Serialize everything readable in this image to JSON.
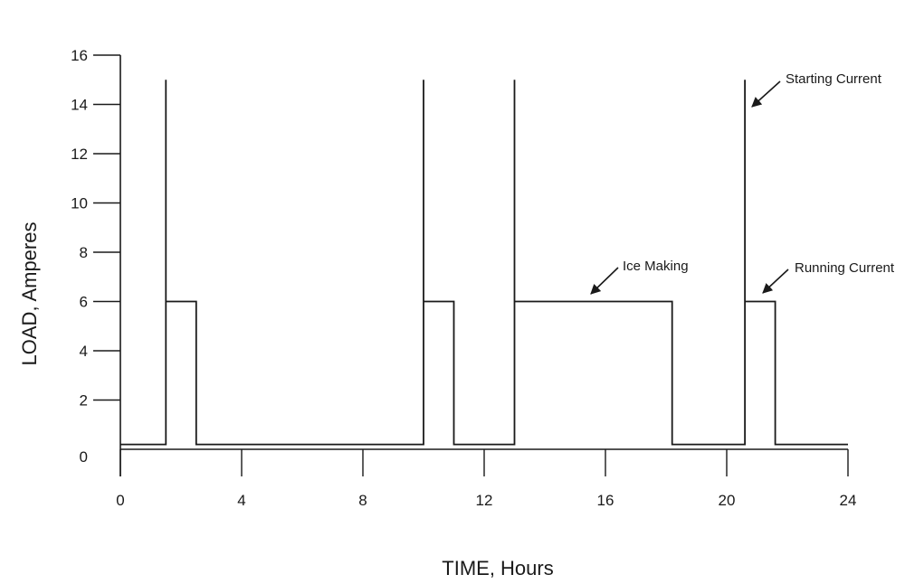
{
  "chart_data": {
    "type": "line",
    "title": "",
    "xlabel": "TIME, Hours",
    "ylabel": "LOAD, Amperes",
    "xlim": [
      0,
      24
    ],
    "ylim": [
      0,
      16
    ],
    "x_ticks": [
      "0",
      "4",
      "8",
      "12",
      "16",
      "20",
      "24"
    ],
    "y_ticks": [
      "0",
      "2",
      "4",
      "6",
      "8",
      "10",
      "12",
      "14",
      "16"
    ],
    "grid": false,
    "legend": "none",
    "series": [
      {
        "x": [
          0,
          1.5,
          1.5,
          1.5,
          2.5,
          2.5,
          10.0,
          10.0,
          10.0,
          11.0,
          11.0,
          13.0,
          13.0,
          13.0,
          18.2,
          18.2,
          20.6,
          20.6,
          20.6,
          21.6,
          21.6,
          24.0
        ],
        "y": [
          0.2,
          0.2,
          15,
          6,
          6,
          0.2,
          0.2,
          15,
          6,
          6,
          0.2,
          0.2,
          15,
          6,
          6,
          0.2,
          0.2,
          15,
          6,
          6,
          0.2,
          0.2
        ]
      }
    ],
    "annotations": [
      {
        "text": "Starting Current",
        "x": 20.6,
        "y": 15
      },
      {
        "text": "Ice Making",
        "x": 15.5,
        "y": 6
      },
      {
        "text": "Running Current",
        "x": 21.0,
        "y": 6
      }
    ],
    "line_color": "#1a1a1a"
  }
}
